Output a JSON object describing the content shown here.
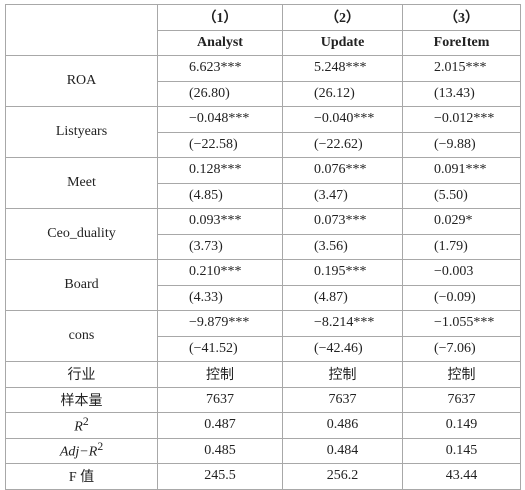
{
  "header": {
    "columns": [
      "（1）",
      "（2）",
      "（3）"
    ],
    "models": [
      "Analyst",
      "Update",
      "ForeItem"
    ]
  },
  "rows": [
    {
      "variable": "ROA",
      "coef": [
        "6.623***",
        "5.248***",
        "2.015***"
      ],
      "t": [
        "(26.80)",
        "(26.12)",
        "(13.43)"
      ]
    },
    {
      "variable": "Listyears",
      "coef": [
        "−0.048***",
        "−0.040***",
        "−0.012***"
      ],
      "t": [
        "(−22.58)",
        "(−22.62)",
        "(−9.88)"
      ]
    },
    {
      "variable": "Meet",
      "coef": [
        "0.128***",
        "0.076***",
        "0.091***"
      ],
      "t": [
        "(4.85)",
        "(3.47)",
        "(5.50)"
      ]
    },
    {
      "variable": "Ceo_duality",
      "coef": [
        "0.093***",
        "0.073***",
        "0.029*"
      ],
      "t": [
        "(3.73)",
        "(3.56)",
        "(1.79)"
      ]
    },
    {
      "variable": "Board",
      "coef": [
        "0.210***",
        "0.195***",
        "−0.003"
      ],
      "t": [
        "(4.33)",
        "(4.87)",
        "(−0.09)"
      ]
    },
    {
      "variable": "cons",
      "coef": [
        "−9.879***",
        "−8.214***",
        "−1.055***"
      ],
      "t": [
        "(−41.52)",
        "(−42.46)",
        "(−7.06)"
      ]
    }
  ],
  "stats": [
    {
      "label": "行业",
      "values": [
        "控制",
        "控制",
        "控制"
      ]
    },
    {
      "label": "样本量",
      "values": [
        "7637",
        "7637",
        "7637"
      ]
    },
    {
      "label_italic": "R",
      "label_sup": "2",
      "values": [
        "0.487",
        "0.486",
        "0.149"
      ]
    },
    {
      "label_italic": "Adj−R",
      "label_sup": "2",
      "values": [
        "0.485",
        "0.484",
        "0.145"
      ]
    },
    {
      "label": "F 值",
      "values": [
        "245.5",
        "256.2",
        "43.44"
      ]
    }
  ]
}
